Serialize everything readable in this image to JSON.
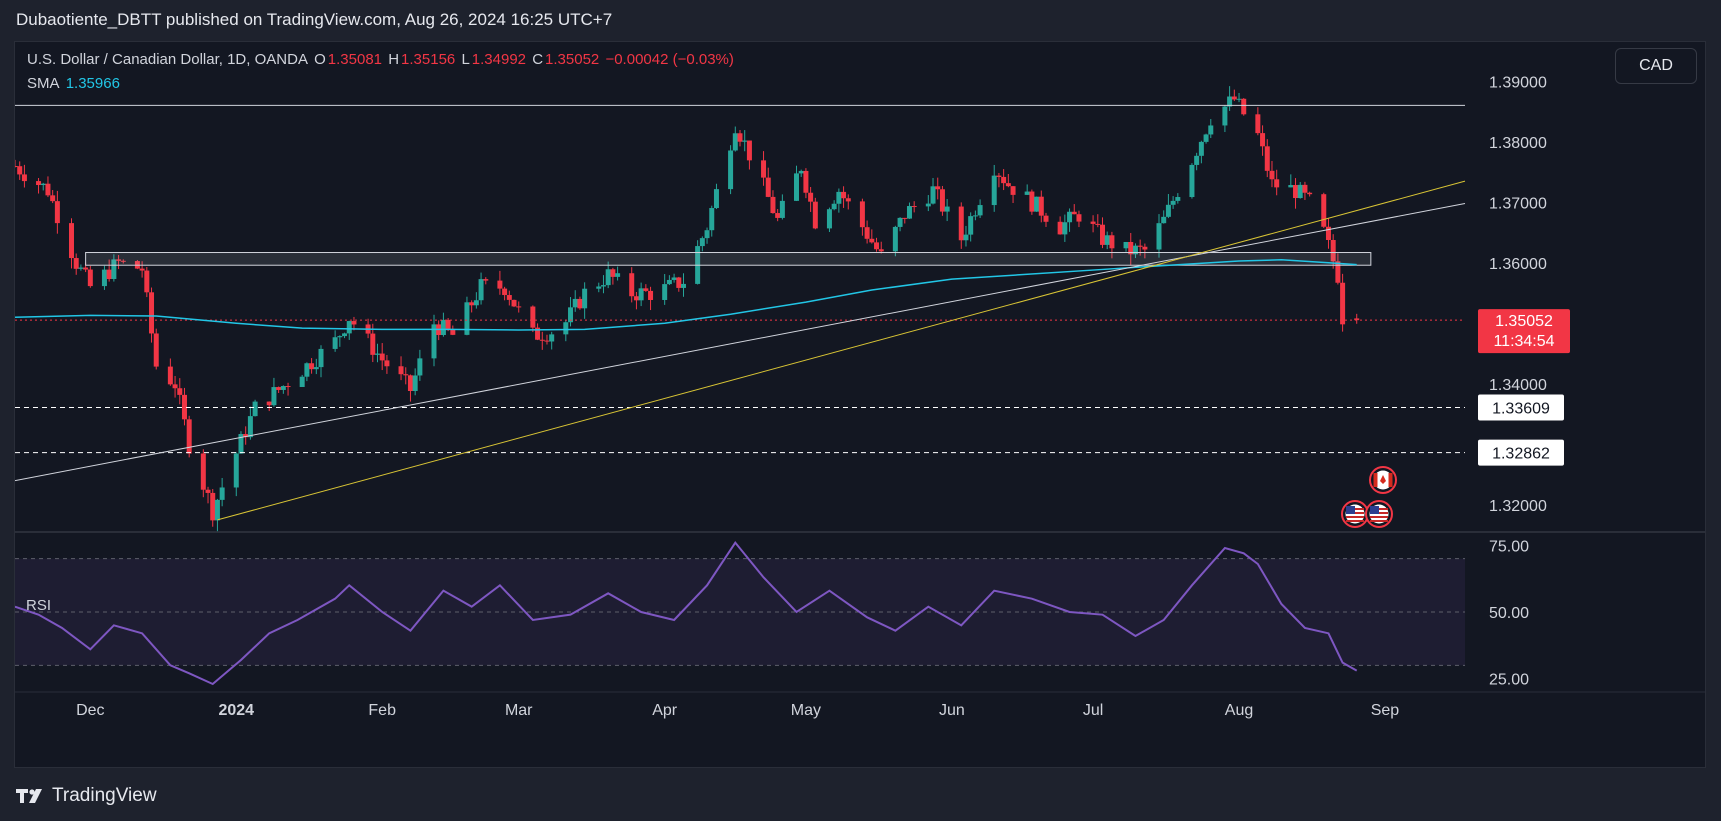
{
  "header": {
    "publisher_line": "Dubaotiente_DBTT published on TradingView.com, Aug 26, 2024 16:25 UTC+7"
  },
  "legend": {
    "symbol": "U.S. Dollar / Canadian Dollar, 1D, OANDA",
    "o_label": "O",
    "o_value": "1.35081",
    "h_label": "H",
    "h_value": "1.35156",
    "l_label": "L",
    "l_value": "1.34992",
    "c_label": "C",
    "c_value": "1.35052",
    "change": "−0.00042 (−0.03%)",
    "sma_label": "SMA",
    "sma_value": "1.35966"
  },
  "currency_button": "CAD",
  "rsi_label": "RSI",
  "footer": {
    "brand": "TradingView"
  },
  "colors": {
    "background": "#131722",
    "up": "#26a69a",
    "down": "#f23645",
    "sma": "#22c6e6",
    "rsi": "#7e57c2",
    "trendline_yellow": "#d8c435",
    "trendline_white": "#d1d4dc",
    "label_red": "#f23645"
  },
  "chart_data": [
    {
      "type": "candlestick",
      "title": "U.S. Dollar / Canadian Dollar, 1D, OANDA",
      "ylim": [
        1.3155,
        1.3965
      ],
      "y_ticks": [
        "1.39000",
        "1.38000",
        "1.37000",
        "1.36000",
        "1.34000",
        "1.32000"
      ],
      "x_ticks": [
        "Dec",
        "2024",
        "Feb",
        "Mar",
        "Apr",
        "May",
        "Jun",
        "Jul",
        "Aug",
        "Sep"
      ],
      "x_tick_dates": [
        "2023-12-01",
        "2024-01-01",
        "2024-02-01",
        "2024-03-01",
        "2024-04-01",
        "2024-05-01",
        "2024-06-01",
        "2024-07-01",
        "2024-08-01",
        "2024-09-01"
      ],
      "date_range": [
        "2023-11-15",
        "2024-09-18"
      ],
      "series": [
        {
          "name": "SMA",
          "type": "line",
          "points": [
            [
              "2023-11-15",
              1.351
            ],
            [
              "2023-12-01",
              1.3513
            ],
            [
              "2023-12-15",
              1.3512
            ],
            [
              "2024-01-01",
              1.35
            ],
            [
              "2024-01-15",
              1.3492
            ],
            [
              "2024-02-01",
              1.349
            ],
            [
              "2024-02-15",
              1.349
            ],
            [
              "2024-03-01",
              1.3489
            ],
            [
              "2024-03-15",
              1.349
            ],
            [
              "2024-04-01",
              1.35
            ],
            [
              "2024-04-15",
              1.3515
            ],
            [
              "2024-05-01",
              1.3535
            ],
            [
              "2024-05-15",
              1.3555
            ],
            [
              "2024-06-01",
              1.3573
            ],
            [
              "2024-06-15",
              1.358
            ],
            [
              "2024-07-01",
              1.3588
            ],
            [
              "2024-07-15",
              1.3595
            ],
            [
              "2024-08-01",
              1.3603
            ],
            [
              "2024-08-10",
              1.3605
            ],
            [
              "2024-08-20",
              1.36
            ],
            [
              "2024-08-26",
              1.3597
            ]
          ]
        }
      ],
      "candles_generated": {
        "start_date": "2023-11-15",
        "end_date": "2024-08-26",
        "anchors": [
          [
            "2023-11-15",
            1.376
          ],
          [
            "2023-11-22",
            1.372
          ],
          [
            "2023-11-28",
            1.36
          ],
          [
            "2023-12-01",
            1.356
          ],
          [
            "2023-12-04",
            1.358
          ],
          [
            "2023-12-07",
            1.36
          ],
          [
            "2023-12-12",
            1.359
          ],
          [
            "2023-12-15",
            1.343
          ],
          [
            "2023-12-19",
            1.34
          ],
          [
            "2023-12-22",
            1.33
          ],
          [
            "2023-12-27",
            1.319
          ],
          [
            "2023-12-29",
            1.323
          ],
          [
            "2024-01-05",
            1.336
          ],
          [
            "2024-01-10",
            1.339
          ],
          [
            "2024-01-16",
            1.343
          ],
          [
            "2024-01-22",
            1.347
          ],
          [
            "2024-01-25",
            1.351
          ],
          [
            "2024-02-01",
            1.344
          ],
          [
            "2024-02-07",
            1.339
          ],
          [
            "2024-02-12",
            1.35
          ],
          [
            "2024-02-16",
            1.348
          ],
          [
            "2024-02-22",
            1.356
          ],
          [
            "2024-02-27",
            1.356
          ],
          [
            "2024-03-04",
            1.348
          ],
          [
            "2024-03-10",
            1.349
          ],
          [
            "2024-03-15",
            1.355
          ],
          [
            "2024-03-20",
            1.358
          ],
          [
            "2024-03-25",
            1.355
          ],
          [
            "2024-03-30",
            1.355
          ],
          [
            "2024-04-05",
            1.357
          ],
          [
            "2024-04-10",
            1.366
          ],
          [
            "2024-04-16",
            1.383
          ],
          [
            "2024-04-19",
            1.378
          ],
          [
            "2024-04-25",
            1.367
          ],
          [
            "2024-04-30",
            1.376
          ],
          [
            "2024-05-03",
            1.367
          ],
          [
            "2024-05-08",
            1.372
          ],
          [
            "2024-05-13",
            1.366
          ],
          [
            "2024-05-17",
            1.361
          ],
          [
            "2024-05-22",
            1.368
          ],
          [
            "2024-05-28",
            1.372
          ],
          [
            "2024-06-03",
            1.364
          ],
          [
            "2024-06-10",
            1.376
          ],
          [
            "2024-06-13",
            1.373
          ],
          [
            "2024-06-18",
            1.37
          ],
          [
            "2024-06-24",
            1.366
          ],
          [
            "2024-06-28",
            1.368
          ],
          [
            "2024-07-03",
            1.364
          ],
          [
            "2024-07-08",
            1.362
          ],
          [
            "2024-07-12",
            1.362
          ],
          [
            "2024-07-16",
            1.367
          ],
          [
            "2024-07-22",
            1.377
          ],
          [
            "2024-07-26",
            1.384
          ],
          [
            "2024-07-31",
            1.387
          ],
          [
            "2024-08-05",
            1.381
          ],
          [
            "2024-08-08",
            1.373
          ],
          [
            "2024-08-13",
            1.372
          ],
          [
            "2024-08-16",
            1.37
          ],
          [
            "2024-08-19",
            1.365
          ],
          [
            "2024-08-22",
            1.358
          ],
          [
            "2024-08-23",
            1.351
          ],
          [
            "2024-08-26",
            1.3505
          ]
        ]
      },
      "horizontal_lines": [
        {
          "price": 1.38603,
          "style": "solid",
          "color": "#d1d4dc"
        },
        {
          "price": 1.33609,
          "style": "dashed",
          "color": "#ffffff",
          "label": "1.33609"
        },
        {
          "price": 1.32862,
          "style": "dashed",
          "color": "#ffffff",
          "label": "1.32862"
        },
        {
          "price": 1.35052,
          "style": "dotted",
          "color": "#f23645"
        }
      ],
      "zone": {
        "from_date": "2023-11-30",
        "to_date": "2024-08-29",
        "top": 1.3617,
        "bottom": 1.3596
      },
      "trendlines": [
        {
          "color": "#d1d4dc",
          "from": [
            "2023-11-15",
            1.324
          ],
          "to": [
            "2024-09-18",
            1.3698
          ]
        },
        {
          "color": "#d8c435",
          "from": [
            "2023-12-28",
            1.3175
          ],
          "to": [
            "2024-09-18",
            1.3735
          ]
        }
      ],
      "last_price": {
        "value": "1.35052",
        "countdown": "11:34:54"
      },
      "events": [
        {
          "date": "2024-08-28",
          "flag": "CA"
        },
        {
          "date": "2024-08-23",
          "flag": "US"
        },
        {
          "date": "2024-08-28",
          "flag": "US"
        }
      ]
    },
    {
      "type": "line",
      "title": "RSI",
      "ylim": [
        20,
        80
      ],
      "y_ticks": [
        "75.00",
        "50.00",
        "25.00"
      ],
      "band": [
        30,
        70
      ],
      "series": [
        {
          "name": "RSI",
          "points": [
            [
              "2023-11-15",
              52
            ],
            [
              "2023-11-20",
              49
            ],
            [
              "2023-11-25",
              44
            ],
            [
              "2023-12-01",
              36
            ],
            [
              "2023-12-06",
              45
            ],
            [
              "2023-12-12",
              42
            ],
            [
              "2023-12-18",
              30
            ],
            [
              "2023-12-22",
              27
            ],
            [
              "2023-12-27",
              23
            ],
            [
              "2024-01-02",
              32
            ],
            [
              "2024-01-08",
              42
            ],
            [
              "2024-01-14",
              47
            ],
            [
              "2024-01-22",
              55
            ],
            [
              "2024-01-25",
              60
            ],
            [
              "2024-02-01",
              50
            ],
            [
              "2024-02-07",
              43
            ],
            [
              "2024-02-14",
              58
            ],
            [
              "2024-02-20",
              52
            ],
            [
              "2024-02-26",
              60
            ],
            [
              "2024-03-04",
              47
            ],
            [
              "2024-03-12",
              49
            ],
            [
              "2024-03-20",
              57
            ],
            [
              "2024-03-27",
              50
            ],
            [
              "2024-04-03",
              47
            ],
            [
              "2024-04-10",
              60
            ],
            [
              "2024-04-16",
              76
            ],
            [
              "2024-04-22",
              63
            ],
            [
              "2024-04-29",
              50
            ],
            [
              "2024-05-06",
              58
            ],
            [
              "2024-05-14",
              48
            ],
            [
              "2024-05-20",
              43
            ],
            [
              "2024-05-27",
              52
            ],
            [
              "2024-06-03",
              45
            ],
            [
              "2024-06-10",
              58
            ],
            [
              "2024-06-18",
              55
            ],
            [
              "2024-06-26",
              50
            ],
            [
              "2024-07-03",
              49
            ],
            [
              "2024-07-10",
              41
            ],
            [
              "2024-07-16",
              47
            ],
            [
              "2024-07-22",
              60
            ],
            [
              "2024-07-29",
              74
            ],
            [
              "2024-08-02",
              72
            ],
            [
              "2024-08-05",
              68
            ],
            [
              "2024-08-10",
              53
            ],
            [
              "2024-08-15",
              44
            ],
            [
              "2024-08-20",
              42
            ],
            [
              "2024-08-23",
              31
            ],
            [
              "2024-08-26",
              28
            ]
          ]
        }
      ]
    }
  ]
}
